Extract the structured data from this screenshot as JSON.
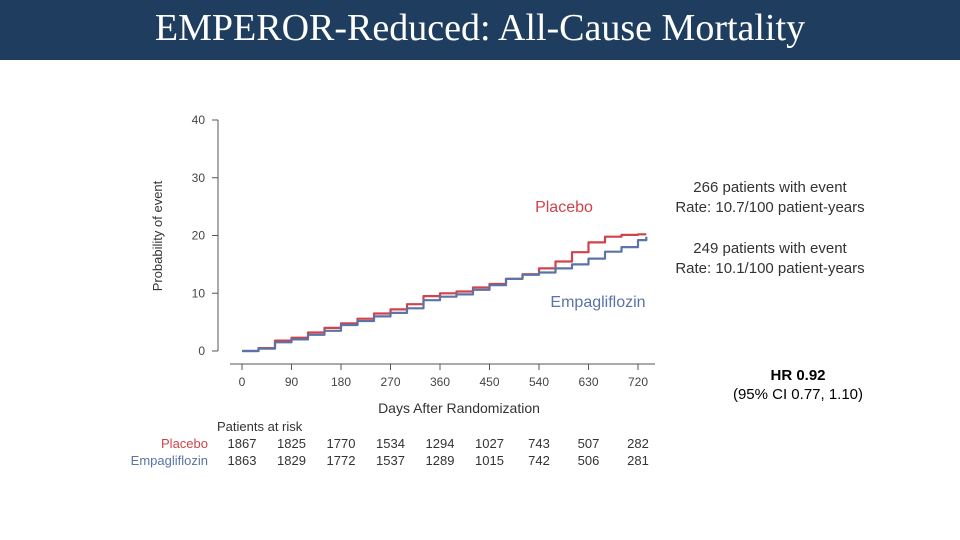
{
  "slide": {
    "title": "EMPEROR-Reduced: All-Cause Mortality"
  },
  "colors": {
    "title_bg": "#1f3d5f",
    "placebo": "#d0434a",
    "empagliflozin": "#5b73a8",
    "axis": "#555555"
  },
  "chart_data": {
    "type": "line",
    "title": "",
    "ylabel": "Probability of event",
    "xlabel": "Days After Randomization",
    "ylim": [
      0,
      40
    ],
    "xlim": [
      0,
      720
    ],
    "x_ticks": [
      0,
      90,
      180,
      270,
      360,
      450,
      540,
      630,
      720
    ],
    "y_ticks": [
      0,
      10,
      20,
      30,
      40
    ],
    "series": [
      {
        "name": "Placebo",
        "color": "#d0434a",
        "x": [
          0,
          30,
          60,
          90,
          120,
          150,
          180,
          210,
          240,
          270,
          300,
          330,
          360,
          390,
          420,
          450,
          480,
          510,
          540,
          570,
          600,
          630,
          660,
          690,
          720,
          735
        ],
        "y": [
          0,
          0.5,
          1.8,
          2.3,
          3.2,
          4.0,
          4.8,
          5.6,
          6.5,
          7.2,
          8.1,
          9.5,
          10.0,
          10.3,
          11.0,
          11.6,
          12.5,
          13.3,
          14.3,
          15.5,
          17.1,
          18.8,
          19.8,
          20.1,
          20.2,
          20.2
        ]
      },
      {
        "name": "Empagliflozin",
        "color": "#5b73a8",
        "x": [
          0,
          30,
          60,
          90,
          120,
          150,
          180,
          210,
          240,
          270,
          300,
          330,
          360,
          390,
          420,
          450,
          480,
          510,
          540,
          570,
          600,
          630,
          660,
          690,
          720,
          735
        ],
        "y": [
          0,
          0.4,
          1.5,
          2.0,
          2.8,
          3.5,
          4.5,
          5.2,
          6.0,
          6.6,
          7.4,
          8.8,
          9.4,
          9.8,
          10.6,
          11.4,
          12.5,
          13.2,
          13.6,
          14.3,
          15.0,
          16.0,
          17.2,
          18.0,
          19.2,
          19.8
        ]
      }
    ],
    "annotations": {
      "placebo_label": "Placebo",
      "empagliflozin_label": "Empagliflozin",
      "placebo_events": "266 patients with event",
      "placebo_rate": "Rate: 10.7/100 patient-years",
      "empagliflozin_events": "249 patients with event",
      "empagliflozin_rate": "Rate: 10.1/100 patient-years",
      "hr": "HR 0.92",
      "ci": "(95% CI 0.77, 1.10)"
    },
    "at_risk": {
      "header": "Patients at risk",
      "rows": [
        {
          "label": "Placebo",
          "color": "#d0434a",
          "values": [
            "1867",
            "1825",
            "1770",
            "1534",
            "1294",
            "1027",
            "743",
            "507",
            "282"
          ]
        },
        {
          "label": "Empagliflozin",
          "color": "#5b73a8",
          "values": [
            "1863",
            "1829",
            "1772",
            "1537",
            "1289",
            "1015",
            "742",
            "506",
            "281"
          ]
        }
      ]
    }
  }
}
